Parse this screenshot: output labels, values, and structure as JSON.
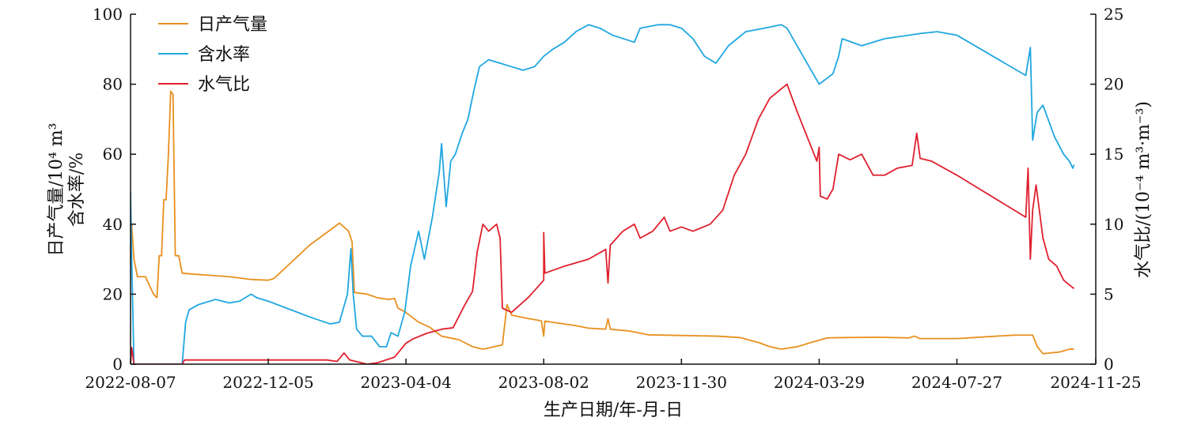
{
  "chart_data": {
    "type": "line",
    "x_axis": {
      "label": "生产日期/年-月-日",
      "ticks": [
        "2022-08-07",
        "2022-12-05",
        "2023-04-04",
        "2023-08-02",
        "2023-11-30",
        "2024-03-29",
        "2024-07-27",
        "2024-11-25"
      ]
    },
    "y_left": {
      "label_line1": "日产气量/10⁴ m³",
      "label_line2": "含水率/%",
      "ylim": [
        0,
        100
      ],
      "ticks": [
        0,
        20,
        40,
        60,
        80,
        100
      ]
    },
    "y_right": {
      "label": "水气比/(10⁻⁴ m³·m⁻³)",
      "ylim": [
        0,
        25
      ],
      "ticks": [
        0,
        5,
        10,
        15,
        20,
        25
      ]
    },
    "legend_position": "top-left",
    "series": [
      {
        "name": "日产气量",
        "axis": "left",
        "color": "#E8901E",
        "points": [
          [
            "2022-08-07",
            35
          ],
          [
            "2022-08-08",
            40
          ],
          [
            "2022-08-10",
            30
          ],
          [
            "2022-08-13",
            25
          ],
          [
            "2022-08-20",
            25
          ],
          [
            "2022-08-27",
            20
          ],
          [
            "2022-08-30",
            19
          ],
          [
            "2022-09-01",
            31
          ],
          [
            "2022-09-03",
            31
          ],
          [
            "2022-09-05",
            47
          ],
          [
            "2022-09-07",
            47
          ],
          [
            "2022-09-09",
            60
          ],
          [
            "2022-09-11",
            78
          ],
          [
            "2022-09-13",
            77
          ],
          [
            "2022-09-15",
            31
          ],
          [
            "2022-09-18",
            31
          ],
          [
            "2022-09-21",
            26
          ],
          [
            "2022-10-10",
            25.5
          ],
          [
            "2022-11-01",
            25
          ],
          [
            "2022-11-20",
            24.2
          ],
          [
            "2022-12-05",
            24
          ],
          [
            "2022-12-10",
            24.5
          ],
          [
            "2023-01-10",
            34
          ],
          [
            "2023-02-05",
            40.3
          ],
          [
            "2023-02-13",
            38
          ],
          [
            "2023-02-16",
            35
          ],
          [
            "2023-02-18",
            20.5
          ],
          [
            "2023-03-01",
            20
          ],
          [
            "2023-03-10",
            19
          ],
          [
            "2023-03-20",
            18.5
          ],
          [
            "2023-03-25",
            18.8
          ],
          [
            "2023-03-28",
            16
          ],
          [
            "2023-04-03",
            15
          ],
          [
            "2023-04-15",
            12
          ],
          [
            "2023-04-25",
            10.5
          ],
          [
            "2023-05-05",
            8
          ],
          [
            "2023-05-20",
            7
          ],
          [
            "2023-06-01",
            5
          ],
          [
            "2023-06-10",
            4.3
          ],
          [
            "2023-06-20",
            5
          ],
          [
            "2023-06-27",
            5.5
          ],
          [
            "2023-07-01",
            17
          ],
          [
            "2023-07-05",
            14
          ],
          [
            "2023-07-20",
            13
          ],
          [
            "2023-07-29",
            12.5
          ],
          [
            "2023-07-31",
            12.3
          ],
          [
            "2023-08-02",
            8
          ],
          [
            "2023-08-03",
            12.3
          ],
          [
            "2023-08-30",
            11
          ],
          [
            "2023-09-10",
            10.3
          ],
          [
            "2023-09-25",
            10
          ],
          [
            "2023-09-27",
            13
          ],
          [
            "2023-09-29",
            10
          ],
          [
            "2023-10-15",
            9.5
          ],
          [
            "2023-11-01",
            8.4
          ],
          [
            "2023-11-30",
            8.2
          ],
          [
            "2024-01-01",
            8
          ],
          [
            "2024-01-20",
            7.6
          ],
          [
            "2024-02-05",
            6.2
          ],
          [
            "2024-02-15",
            5
          ],
          [
            "2024-02-25",
            4.3
          ],
          [
            "2024-03-10",
            5
          ],
          [
            "2024-03-25",
            6.5
          ],
          [
            "2024-04-05",
            7.5
          ],
          [
            "2024-04-20",
            7.6
          ],
          [
            "2024-05-20",
            7.7
          ],
          [
            "2024-06-15",
            7.5
          ],
          [
            "2024-06-20",
            8
          ],
          [
            "2024-06-25",
            7.3
          ],
          [
            "2024-07-27",
            7.3
          ],
          [
            "2024-08-20",
            7.8
          ],
          [
            "2024-09-15",
            8.3
          ],
          [
            "2024-10-01",
            8.3
          ],
          [
            "2024-10-05",
            5
          ],
          [
            "2024-10-10",
            3
          ],
          [
            "2024-10-25",
            3.5
          ],
          [
            "2024-11-02",
            4.3
          ],
          [
            "2024-11-06",
            4.3
          ]
        ]
      },
      {
        "name": "含水率",
        "axis": "left",
        "color": "#1FA7E0",
        "points": [
          [
            "2022-08-07",
            49
          ],
          [
            "2022-08-08",
            30
          ],
          [
            "2022-08-10",
            0
          ],
          [
            "2022-09-21",
            0
          ],
          [
            "2022-09-24",
            12
          ],
          [
            "2022-09-27",
            15.5
          ],
          [
            "2022-10-05",
            17
          ],
          [
            "2022-10-20",
            18.5
          ],
          [
            "2022-11-01",
            17.5
          ],
          [
            "2022-11-10",
            18
          ],
          [
            "2022-11-20",
            20
          ],
          [
            "2022-11-25",
            19
          ],
          [
            "2022-12-05",
            18
          ],
          [
            "2023-01-10",
            13.5
          ],
          [
            "2023-01-28",
            11.5
          ],
          [
            "2023-02-05",
            12
          ],
          [
            "2023-02-12",
            20
          ],
          [
            "2023-02-15",
            33
          ],
          [
            "2023-02-17",
            20
          ],
          [
            "2023-02-20",
            10
          ],
          [
            "2023-02-25",
            8
          ],
          [
            "2023-03-05",
            8
          ],
          [
            "2023-03-12",
            5
          ],
          [
            "2023-03-18",
            5
          ],
          [
            "2023-03-22",
            9
          ],
          [
            "2023-03-28",
            8
          ],
          [
            "2023-04-03",
            15
          ],
          [
            "2023-04-08",
            28
          ],
          [
            "2023-04-15",
            38
          ],
          [
            "2023-04-20",
            30
          ],
          [
            "2023-04-27",
            42
          ],
          [
            "2023-05-03",
            55
          ],
          [
            "2023-05-05",
            63
          ],
          [
            "2023-05-09",
            45
          ],
          [
            "2023-05-13",
            58
          ],
          [
            "2023-05-17",
            60
          ],
          [
            "2023-05-23",
            66
          ],
          [
            "2023-05-28",
            70
          ],
          [
            "2023-06-02",
            78
          ],
          [
            "2023-06-07",
            85
          ],
          [
            "2023-06-15",
            87
          ],
          [
            "2023-06-25",
            86
          ],
          [
            "2023-07-05",
            85
          ],
          [
            "2023-07-15",
            84
          ],
          [
            "2023-07-25",
            85
          ],
          [
            "2023-08-02",
            88
          ],
          [
            "2023-08-10",
            90
          ],
          [
            "2023-08-20",
            92
          ],
          [
            "2023-08-30",
            95
          ],
          [
            "2023-09-10",
            97
          ],
          [
            "2023-09-20",
            96
          ],
          [
            "2023-10-01",
            94
          ],
          [
            "2023-10-20",
            92
          ],
          [
            "2023-10-25",
            96
          ],
          [
            "2023-11-10",
            97
          ],
          [
            "2023-11-20",
            97
          ],
          [
            "2023-11-30",
            96
          ],
          [
            "2023-12-10",
            93
          ],
          [
            "2023-12-20",
            88
          ],
          [
            "2023-12-30",
            86
          ],
          [
            "2024-01-10",
            91
          ],
          [
            "2024-01-25",
            95
          ],
          [
            "2024-02-10",
            96
          ],
          [
            "2024-02-25",
            97
          ],
          [
            "2024-03-01",
            96
          ],
          [
            "2024-03-29",
            80
          ],
          [
            "2024-04-10",
            83
          ],
          [
            "2024-04-15",
            88
          ],
          [
            "2024-04-18",
            93
          ],
          [
            "2024-05-05",
            91
          ],
          [
            "2024-05-25",
            93
          ],
          [
            "2024-06-15",
            94
          ],
          [
            "2024-06-25",
            94.5
          ],
          [
            "2024-07-10",
            95
          ],
          [
            "2024-07-27",
            94
          ],
          [
            "2024-09-25",
            82.5
          ],
          [
            "2024-09-29",
            90.5
          ],
          [
            "2024-10-01",
            64
          ],
          [
            "2024-10-05",
            72
          ],
          [
            "2024-10-10",
            74
          ],
          [
            "2024-10-20",
            65
          ],
          [
            "2024-10-28",
            60
          ],
          [
            "2024-11-02",
            58
          ],
          [
            "2024-11-05",
            56
          ],
          [
            "2024-11-06",
            57
          ]
        ]
      },
      {
        "name": "水气比",
        "axis": "right",
        "color": "#E0202E",
        "points": [
          [
            "2022-08-07",
            0
          ],
          [
            "2022-08-08",
            1.2
          ],
          [
            "2022-08-10",
            0
          ],
          [
            "2022-09-21",
            0
          ],
          [
            "2022-09-23",
            0.3
          ],
          [
            "2022-12-05",
            0.3
          ],
          [
            "2023-01-25",
            0.3
          ],
          [
            "2023-02-03",
            0.2
          ],
          [
            "2023-02-09",
            0.8
          ],
          [
            "2023-02-14",
            0.3
          ],
          [
            "2023-03-01",
            0
          ],
          [
            "2023-03-10",
            0.1
          ],
          [
            "2023-03-25",
            0.5
          ],
          [
            "2023-04-04",
            1.5
          ],
          [
            "2023-04-10",
            1.8
          ],
          [
            "2023-04-22",
            2.2
          ],
          [
            "2023-05-05",
            2.5
          ],
          [
            "2023-05-15",
            2.6
          ],
          [
            "2023-05-25",
            4.2
          ],
          [
            "2023-06-01",
            5.2
          ],
          [
            "2023-06-05",
            8
          ],
          [
            "2023-06-10",
            10
          ],
          [
            "2023-06-15",
            9.5
          ],
          [
            "2023-06-22",
            10
          ],
          [
            "2023-06-25",
            9
          ],
          [
            "2023-06-27",
            4
          ],
          [
            "2023-07-05",
            3.7
          ],
          [
            "2023-07-20",
            4.8
          ],
          [
            "2023-08-02",
            6
          ],
          [
            "2023-08-02",
            9.4
          ],
          [
            "2023-08-03",
            6.5
          ],
          [
            "2023-08-20",
            7
          ],
          [
            "2023-09-10",
            7.5
          ],
          [
            "2023-09-25",
            8.2
          ],
          [
            "2023-09-27",
            5.8
          ],
          [
            "2023-09-29",
            8.5
          ],
          [
            "2023-10-10",
            9.5
          ],
          [
            "2023-10-20",
            10
          ],
          [
            "2023-10-25",
            9
          ],
          [
            "2023-11-05",
            9.5
          ],
          [
            "2023-11-15",
            10.5
          ],
          [
            "2023-11-20",
            9.5
          ],
          [
            "2023-11-30",
            9.8
          ],
          [
            "2023-12-10",
            9.5
          ],
          [
            "2023-12-25",
            10
          ],
          [
            "2024-01-05",
            11
          ],
          [
            "2024-01-15",
            13.5
          ],
          [
            "2024-01-25",
            15
          ],
          [
            "2024-02-05",
            17.5
          ],
          [
            "2024-02-15",
            19
          ],
          [
            "2024-03-01",
            20
          ],
          [
            "2024-03-10",
            18
          ],
          [
            "2024-03-27",
            14.5
          ],
          [
            "2024-03-29",
            15.5
          ],
          [
            "2024-03-30",
            12
          ],
          [
            "2024-04-05",
            11.8
          ],
          [
            "2024-04-10",
            12.5
          ],
          [
            "2024-04-15",
            15
          ],
          [
            "2024-04-25",
            14.6
          ],
          [
            "2024-05-05",
            15
          ],
          [
            "2024-05-15",
            13.5
          ],
          [
            "2024-05-25",
            13.5
          ],
          [
            "2024-06-05",
            14
          ],
          [
            "2024-06-18",
            14.2
          ],
          [
            "2024-06-22",
            16.5
          ],
          [
            "2024-06-25",
            14.7
          ],
          [
            "2024-07-05",
            14.5
          ],
          [
            "2024-07-27",
            13.5
          ],
          [
            "2024-09-25",
            10.5
          ],
          [
            "2024-09-27",
            14
          ],
          [
            "2024-09-29",
            7.5
          ],
          [
            "2024-10-01",
            11
          ],
          [
            "2024-10-04",
            12.8
          ],
          [
            "2024-10-10",
            9
          ],
          [
            "2024-10-15",
            7.5
          ],
          [
            "2024-10-22",
            7
          ],
          [
            "2024-10-28",
            6
          ],
          [
            "2024-11-06",
            5.4
          ]
        ]
      }
    ]
  }
}
